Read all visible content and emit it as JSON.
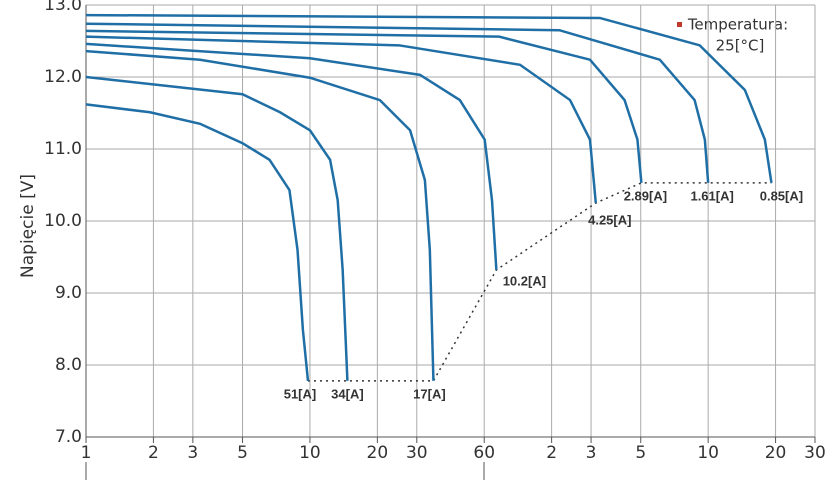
{
  "chart_data": {
    "type": "line",
    "y_label": "Napięcie [V]",
    "annotation": "Temperatura:",
    "annotation_value": "25[°C]",
    "annotation_color": "#c0392b",
    "xscale": "log",
    "grid": true,
    "xlim": [
      1,
      1800
    ],
    "ylim": [
      7,
      13
    ],
    "xticks": [
      1,
      2,
      3,
      5,
      10,
      20,
      30,
      60,
      {
        "value": 120,
        "label": "2"
      },
      {
        "value": 180,
        "label": "3"
      },
      {
        "value": 300,
        "label": "5"
      },
      {
        "value": 600,
        "label": "10"
      },
      {
        "value": 1200,
        "label": "20"
      },
      {
        "value": 1800,
        "label": "30"
      }
    ],
    "yticks": [
      {
        "value": 7,
        "label": "7.0"
      },
      {
        "value": 8,
        "label": "8.0"
      },
      {
        "value": 9,
        "label": "9.0"
      },
      {
        "value": 10,
        "label": "10.0"
      },
      {
        "value": 11,
        "label": "11.0"
      },
      {
        "value": 12,
        "label": "12.0"
      },
      {
        "value": 13,
        "label": "13.0"
      }
    ],
    "series": [
      {
        "name": "51[A]",
        "color": "#1f6fa6",
        "x": [
          1,
          1.93,
          3.23,
          5,
          6.6,
          8.1,
          8.8,
          9.3,
          9.8
        ],
        "values": [
          11.62,
          11.51,
          11.35,
          11.08,
          10.85,
          10.43,
          9.6,
          8.49,
          7.78
        ]
      },
      {
        "name": "34[A]",
        "color": "#1f6fa6",
        "x": [
          1,
          5,
          7.35,
          10,
          12.3,
          13.3,
          14,
          14.7
        ],
        "values": [
          12.0,
          11.76,
          11.51,
          11.26,
          10.85,
          10.29,
          9.32,
          7.78
        ]
      },
      {
        "name": "17[A]",
        "color": "#1f6fa6",
        "x": [
          1,
          3.23,
          10,
          20.5,
          28,
          32.6,
          34.3,
          35.6
        ],
        "values": [
          12.36,
          12.24,
          11.99,
          11.68,
          11.26,
          10.57,
          9.6,
          7.78
        ]
      },
      {
        "name": "10.2[A]",
        "color": "#1f6fa6",
        "x": [
          1,
          10,
          31,
          46.7,
          60.3,
          65,
          68
        ],
        "values": [
          12.46,
          12.26,
          12.03,
          11.68,
          11.13,
          10.29,
          9.32
        ]
      },
      {
        "name": "4.25[A]",
        "color": "#1f6fa6",
        "x": [
          1,
          25,
          86.7,
          145,
          178,
          189
        ],
        "values": [
          12.56,
          12.44,
          12.17,
          11.68,
          11.13,
          10.25
        ]
      },
      {
        "name": "2.89[A]",
        "color": "#1f6fa6",
        "x": [
          1,
          70,
          178,
          254,
          290,
          302
        ],
        "values": [
          12.64,
          12.56,
          12.24,
          11.68,
          11.13,
          10.53
        ]
      },
      {
        "name": "1.61[A]",
        "color": "#1f6fa6",
        "x": [
          1,
          130,
          365,
          522,
          580,
          600
        ],
        "values": [
          12.74,
          12.65,
          12.24,
          11.68,
          11.13,
          10.53
        ]
      },
      {
        "name": "0.85[A]",
        "color": "#1f6fa6",
        "x": [
          1,
          197,
          550,
          875,
          1075,
          1150
        ],
        "values": [
          12.86,
          12.82,
          12.44,
          11.82,
          11.13,
          10.53
        ]
      }
    ]
  }
}
